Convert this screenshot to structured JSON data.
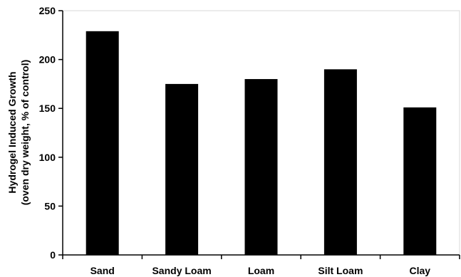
{
  "chart_data": {
    "type": "bar",
    "categories": [
      "Sand",
      "Sandy Loam",
      "Loam",
      "Silt Loam",
      "Clay"
    ],
    "values": [
      229,
      175,
      180,
      190,
      151
    ],
    "title": "",
    "xlabel": "",
    "ylabel_line1": "Hydrogel Induced Growth",
    "ylabel_line2": "(oven dry weight, % of control)",
    "ylim": [
      0,
      250
    ],
    "yticks": [
      0,
      50,
      100,
      150,
      200,
      250
    ],
    "bar_color": "#000000",
    "axis_color": "#000000",
    "grid": false,
    "legend": "none"
  }
}
